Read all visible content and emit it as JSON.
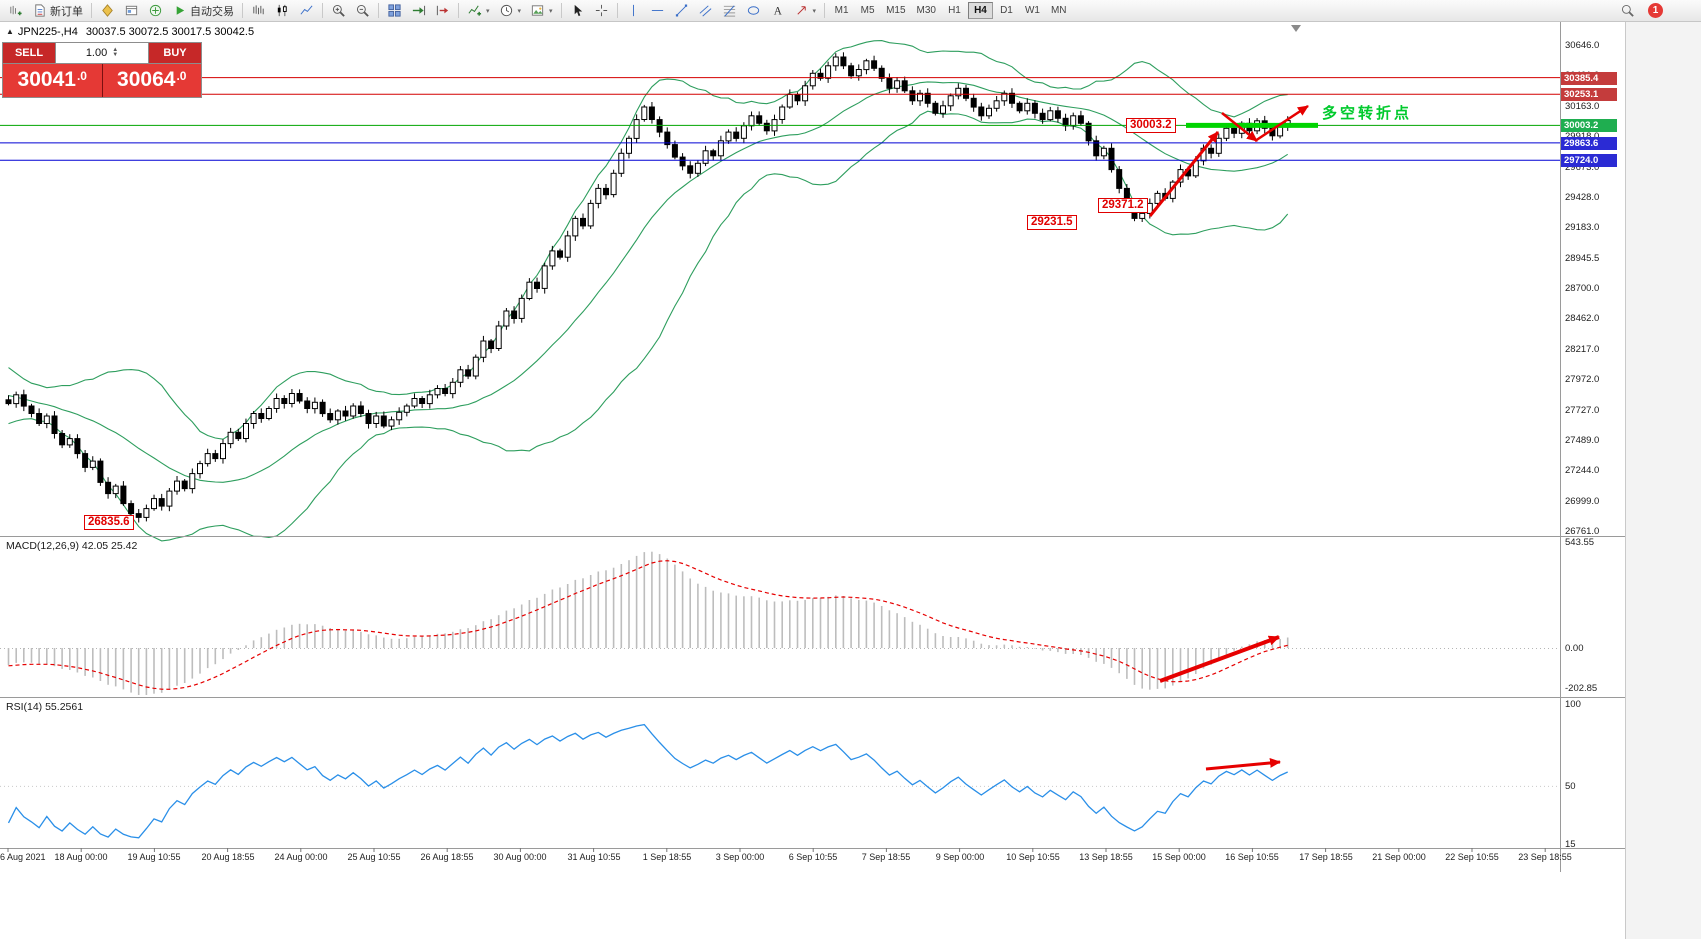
{
  "app": {
    "toolbar": {
      "new_order_label": "新订单",
      "auto_trading_label": "自动交易",
      "timeframes": [
        "M1",
        "M5",
        "M15",
        "M30",
        "H1",
        "H4",
        "D1",
        "W1",
        "MN"
      ],
      "active_timeframe": "H4",
      "notification_count": "1"
    }
  },
  "chart": {
    "symbol_title": "JPN225-,H4",
    "ohlc": "30037.5 30072.5 30017.5 30042.5",
    "trade_panel": {
      "sell_label": "SELL",
      "buy_label": "BUY",
      "lot": "1.00",
      "sell_price_main": "30041",
      "sell_price_frac": ".0",
      "buy_price_main": "30064",
      "buy_price_frac": ".0"
    },
    "annotations": {
      "level_label": "30003.2",
      "swing_low_label": "29371.2",
      "bottom_label": "29231.5",
      "history_low_label": "26835.6",
      "turning_point_label": "多空转折点"
    }
  },
  "chart_data": {
    "type": "candlestick",
    "symbol": "JPN225-",
    "period": "H4",
    "price_axis_range": {
      "max": 30646.0,
      "min": 26761.0
    },
    "price_axis_labels": [
      "30646.0",
      "30401.0",
      "30163.0",
      "29918.0",
      "29673.0",
      "29428.0",
      "29183.0",
      "28945.5",
      "28700.0",
      "28462.0",
      "28217.0",
      "27972.0",
      "27727.0",
      "27489.0",
      "27244.0",
      "26999.0",
      "26761.0"
    ],
    "time_axis_labels": [
      "6 Aug 2021",
      "18 Aug 00:00",
      "19 Aug 10:55",
      "20 Aug 18:55",
      "24 Aug 00:00",
      "25 Aug 10:55",
      "26 Aug 18:55",
      "30 Aug 00:00",
      "31 Aug 10:55",
      "1 Sep 18:55",
      "3 Sep 00:00",
      "6 Sep 10:55",
      "7 Sep 18:55",
      "9 Sep 00:00",
      "10 Sep 10:55",
      "13 Sep 18:55",
      "15 Sep 00:00",
      "16 Sep 10:55",
      "17 Sep 18:55",
      "21 Sep 00:00",
      "22 Sep 10:55",
      "23 Sep 18:55"
    ],
    "closes": [
      27780,
      27850,
      27760,
      27700,
      27620,
      27680,
      27540,
      27450,
      27500,
      27380,
      27270,
      27320,
      27150,
      27060,
      27120,
      26980,
      26900,
      26870,
      26940,
      27020,
      26960,
      27080,
      27160,
      27100,
      27220,
      27300,
      27380,
      27340,
      27460,
      27550,
      27500,
      27620,
      27700,
      27660,
      27740,
      27820,
      27780,
      27860,
      27800,
      27740,
      27790,
      27700,
      27650,
      27720,
      27680,
      27760,
      27700,
      27620,
      27680,
      27600,
      27650,
      27710,
      27760,
      27820,
      27780,
      27850,
      27900,
      27860,
      27950,
      28050,
      28000,
      28150,
      28280,
      28220,
      28400,
      28520,
      28460,
      28620,
      28750,
      28700,
      28880,
      29000,
      28950,
      29120,
      29260,
      29200,
      29380,
      29500,
      29450,
      29620,
      29780,
      29900,
      30050,
      30150,
      30050,
      29950,
      29850,
      29750,
      29680,
      29620,
      29700,
      29800,
      29760,
      29880,
      29950,
      29900,
      30000,
      30080,
      30020,
      29960,
      30050,
      30150,
      30250,
      30200,
      30320,
      30420,
      30380,
      30480,
      30550,
      30480,
      30400,
      30450,
      30520,
      30460,
      30380,
      30300,
      30360,
      30280,
      30200,
      30260,
      30180,
      30100,
      30160,
      30240,
      30300,
      30220,
      30150,
      30080,
      30140,
      30200,
      30260,
      30180,
      30120,
      30180,
      30100,
      30050,
      30120,
      30060,
      30000,
      30080,
      30020,
      29880,
      29760,
      29820,
      29650,
      29500,
      29380,
      29260,
      29300,
      29380,
      29460,
      29420,
      29550,
      29650,
      29600,
      29720,
      29820,
      29780,
      29900,
      29980,
      29940,
      30020,
      29960,
      30040,
      29980,
      29920,
      29990,
      30042
    ],
    "hlines": [
      {
        "price": 30385.4,
        "color": "#d40000",
        "badge": "30385.4",
        "badge_bg": "#c43c3c",
        "thick": false
      },
      {
        "price": 30253.1,
        "color": "#d40000",
        "badge": "30253.1",
        "badge_bg": "#c43c3c",
        "thick": false
      },
      {
        "price": 30003.2,
        "color": "#00a400",
        "badge": "30003.2",
        "badge_bg": "#1fae50",
        "thick": true
      },
      {
        "price": 29863.6,
        "color": "#0000d4",
        "badge": "29863.6",
        "badge_bg": "#2b2bd4",
        "thick": false
      },
      {
        "price": 29724.0,
        "color": "#0000d4",
        "badge": "29724.0",
        "badge_bg": "#2b2bd4",
        "thick": false
      }
    ],
    "indicators": {
      "bollinger": {
        "period": 20,
        "deviation": 2,
        "color": "#2e9e5e"
      },
      "macd": {
        "label": "MACD(12,26,9) 42.05 25.42",
        "axis_labels": [
          "543.55",
          "0.00",
          "-202.85"
        ],
        "histogram_color": "#bdbdbd",
        "signal_color": "#e60000"
      },
      "rsi": {
        "label": "RSI(14) 55.2561",
        "axis_labels": [
          "100",
          "50",
          "15"
        ],
        "color": "#2a8fe8"
      }
    }
  }
}
